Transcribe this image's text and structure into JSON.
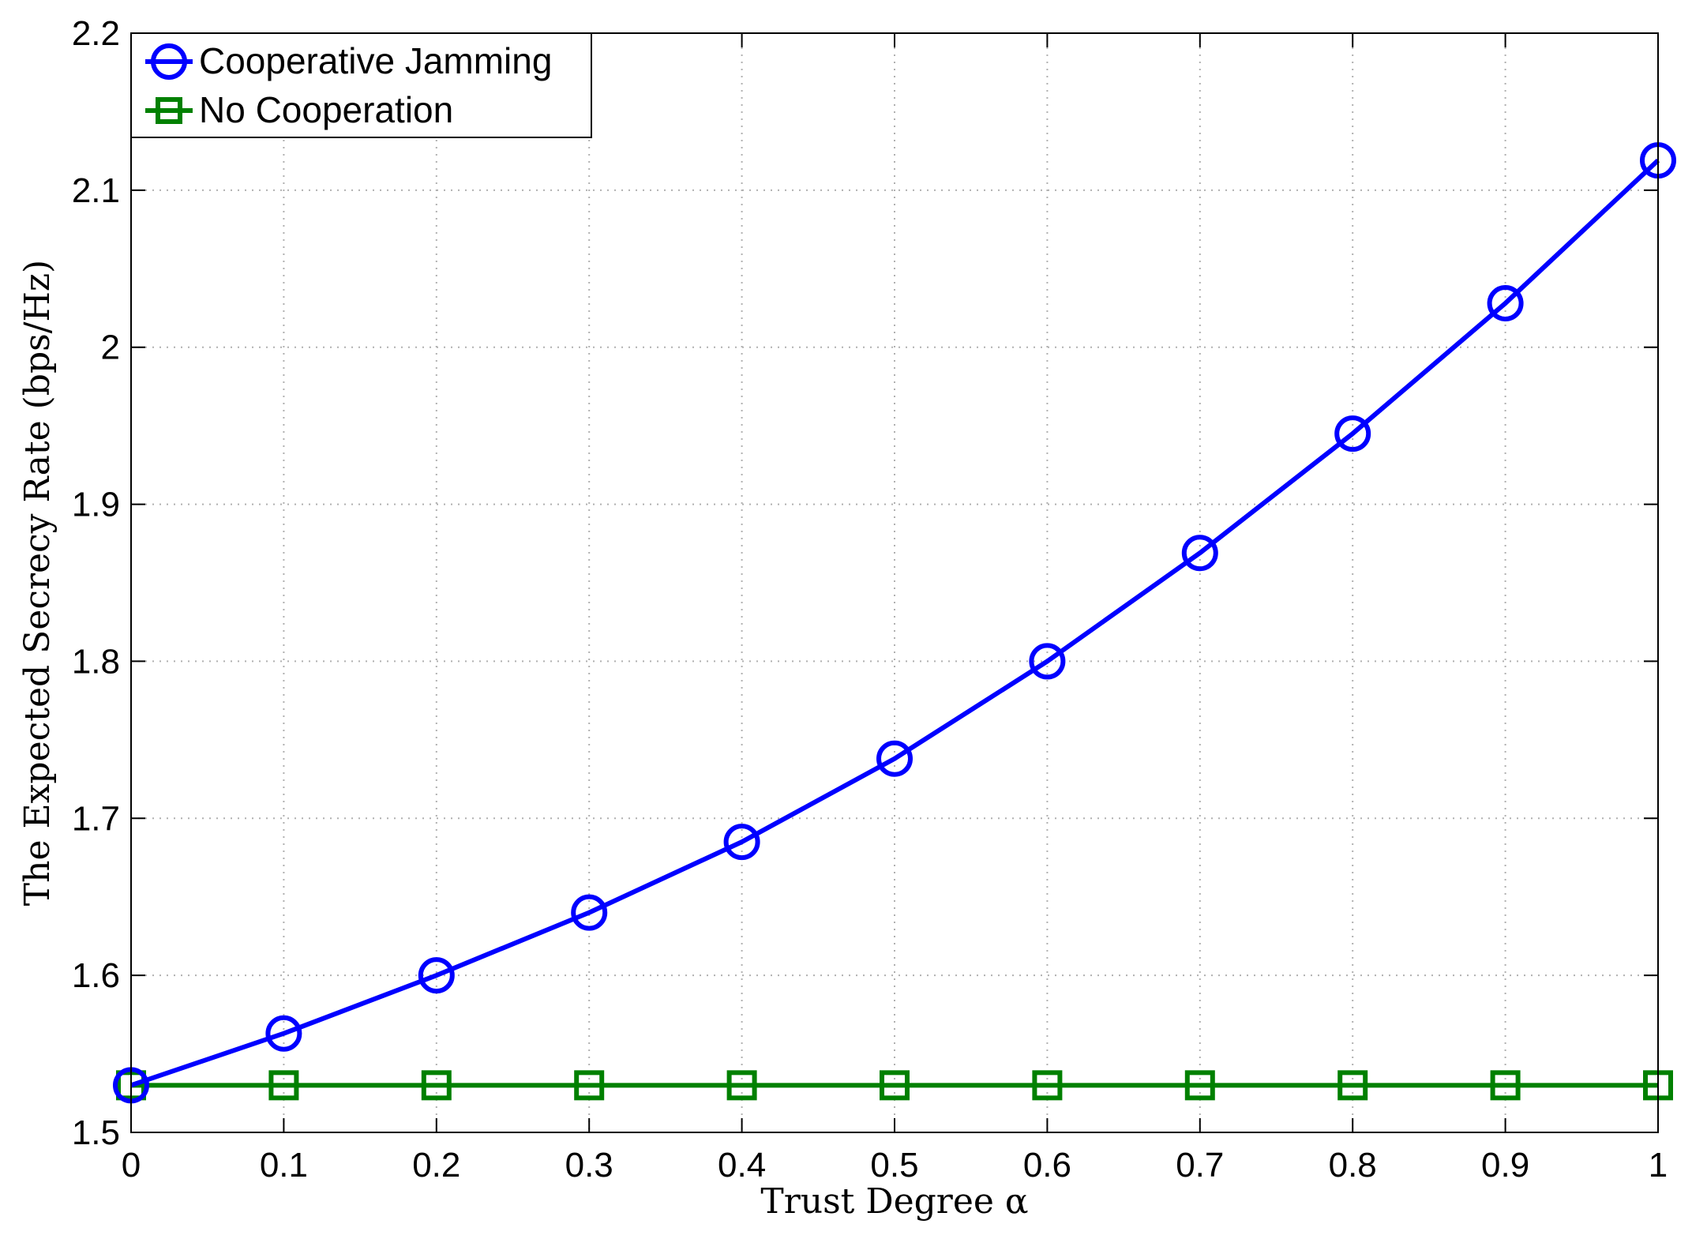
{
  "chart_data": {
    "type": "line",
    "xlabel": "Trust Degree α",
    "ylabel": "The Expected Secrecy Rate (bps/Hz)",
    "xlim": [
      0,
      1
    ],
    "ylim": [
      1.5,
      2.2
    ],
    "x_ticks": [
      "0",
      "0.1",
      "0.2",
      "0.3",
      "0.4",
      "0.5",
      "0.6",
      "0.7",
      "0.8",
      "0.9",
      "1"
    ],
    "y_ticks": [
      "1.5",
      "1.6",
      "1.7",
      "1.8",
      "1.9",
      "2",
      "2.1",
      "2.2"
    ],
    "grid": true,
    "legend_position": "top-left",
    "x": [
      0,
      0.1,
      0.2,
      0.3,
      0.4,
      0.5,
      0.6,
      0.7,
      0.8,
      0.9,
      1
    ],
    "series": [
      {
        "name": "Cooperative Jamming",
        "color": "#0000ff",
        "marker": "circle",
        "values": [
          1.53,
          1.563,
          1.6,
          1.64,
          1.685,
          1.738,
          1.8,
          1.869,
          1.945,
          2.028,
          2.119
        ]
      },
      {
        "name": "No Cooperation",
        "color": "#008000",
        "marker": "square",
        "values": [
          1.53,
          1.53,
          1.53,
          1.53,
          1.53,
          1.53,
          1.53,
          1.53,
          1.53,
          1.53,
          1.53
        ]
      }
    ]
  }
}
